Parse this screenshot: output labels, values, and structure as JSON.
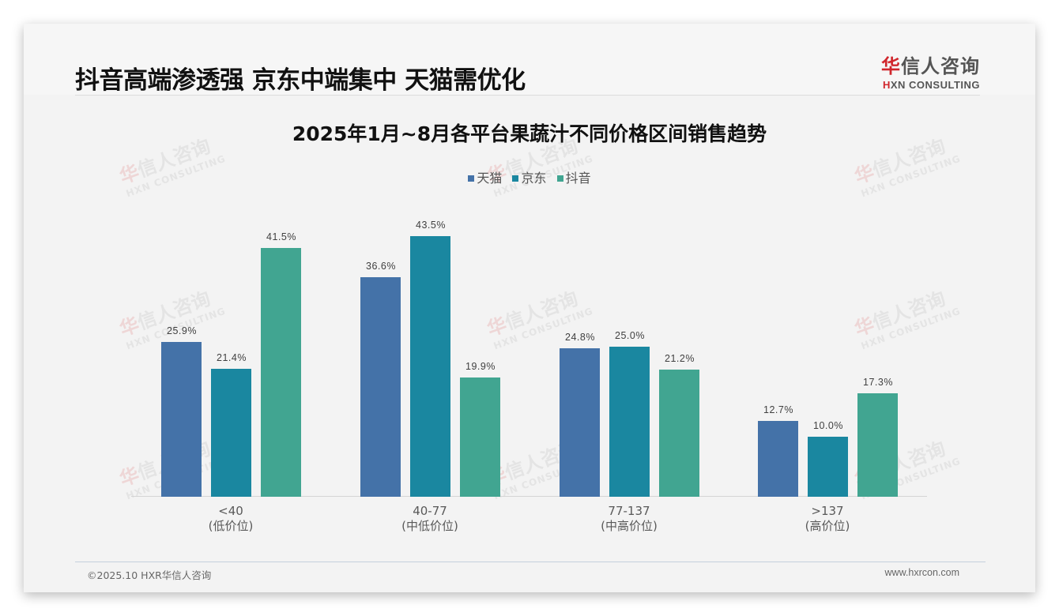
{
  "header": {
    "title": "抖音高端渗透强 京东中端集中 天猫需优化",
    "logo_cn_first": "华",
    "logo_cn_rest": "信人咨询",
    "logo_en_first": "H",
    "logo_en_rest": "XN CONSULTING"
  },
  "watermark": {
    "cn_first": "华",
    "cn_rest": "信人咨询",
    "en": "HXN CONSULTING"
  },
  "colors": {
    "tmall": "#4472a8",
    "jd": "#1a87a0",
    "douyin": "#41a591",
    "logo_red": "#d0262c"
  },
  "chart_data": {
    "type": "bar",
    "title": "2025年1月~8月各平台果蔬汁不同价格区间销售趋势",
    "xlabel": "",
    "ylabel": "",
    "ylim": [
      0,
      50
    ],
    "grid": false,
    "legend_position": "top",
    "categories": [
      "<40\n(低价位)",
      "40-77\n(中低价位)",
      "77-137\n(中高价位)",
      ">137\n(高价位)"
    ],
    "category_ranges": [
      "<40",
      "40-77",
      "77-137",
      ">137"
    ],
    "category_tiers": [
      "(低价位)",
      "(中低价位)",
      "(中高价位)",
      "(高价位)"
    ],
    "series": [
      {
        "name": "天猫",
        "color": "#4472a8",
        "values": [
          25.9,
          36.6,
          24.8,
          12.7
        ],
        "labels": [
          "25.9%",
          "36.6%",
          "24.8%",
          "12.7%"
        ]
      },
      {
        "name": "京东",
        "color": "#1a87a0",
        "values": [
          21.4,
          43.5,
          25.0,
          10.0
        ],
        "labels": [
          "21.4%",
          "43.5%",
          "25.0%",
          "10.0%"
        ]
      },
      {
        "name": "抖音",
        "color": "#41a591",
        "values": [
          41.5,
          19.9,
          21.2,
          17.3
        ],
        "labels": [
          "41.5%",
          "19.9%",
          "21.2%",
          "17.3%"
        ]
      }
    ]
  },
  "footer": {
    "copyright": "©2025.10 HXR华信人咨询",
    "website": "www.hxrcon.com"
  }
}
